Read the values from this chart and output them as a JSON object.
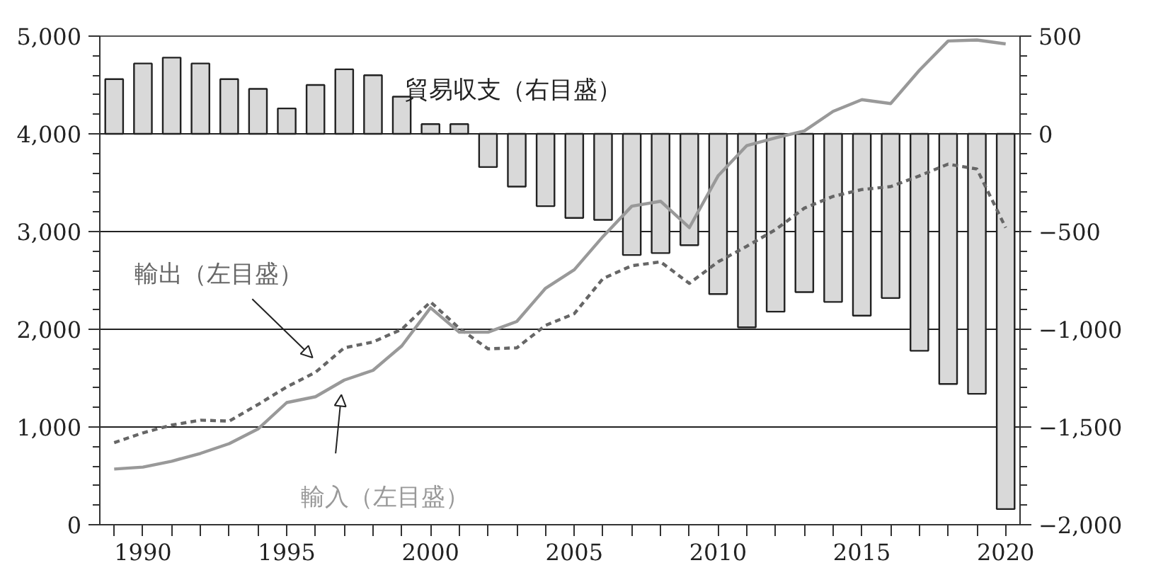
{
  "chart_data": {
    "type": "line",
    "x": [
      1989,
      1990,
      1991,
      1992,
      1993,
      1994,
      1995,
      1996,
      1997,
      1998,
      1999,
      2000,
      2001,
      2002,
      2003,
      2004,
      2005,
      2006,
      2007,
      2008,
      2009,
      2010,
      2011,
      2012,
      2013,
      2014,
      2015,
      2016,
      2017,
      2018,
      2019,
      2020
    ],
    "series": [
      {
        "name": "貿易収支（右目盛）",
        "type": "bar",
        "axis": "y2",
        "color": "#d9d9d9",
        "values": [
          280,
          360,
          390,
          360,
          280,
          230,
          130,
          250,
          330,
          300,
          190,
          50,
          50,
          -170,
          -270,
          -370,
          -430,
          -440,
          -620,
          -610,
          -570,
          -820,
          -990,
          -910,
          -810,
          -860,
          -930,
          -840,
          -1110,
          -1280,
          -1330,
          -1920
        ]
      },
      {
        "name": "輸出（左目盛）",
        "line_style": "dashed",
        "color": "#666666",
        "values": [
          840,
          940,
          1020,
          1070,
          1060,
          1230,
          1410,
          1560,
          1810,
          1870,
          2000,
          2280,
          2010,
          1800,
          1810,
          2040,
          2160,
          2520,
          2650,
          2690,
          2470,
          2690,
          2850,
          3020,
          3240,
          3360,
          3430,
          3460,
          3570,
          3690,
          3640,
          3040
        ]
      },
      {
        "name": "輸入（左目盛）",
        "line_style": "solid",
        "color": "#999999",
        "values": [
          570,
          590,
          650,
          730,
          830,
          980,
          1250,
          1310,
          1480,
          1580,
          1830,
          2220,
          1970,
          1970,
          2080,
          2420,
          2610,
          2950,
          3260,
          3310,
          3040,
          3570,
          3880,
          3960,
          4030,
          4230,
          4350,
          4310,
          4650,
          4950,
          4960,
          4920
        ]
      }
    ],
    "xlim": [
      1988.5,
      2020.5
    ],
    "xticks": [
      {
        "value": 1989,
        "label": null
      },
      1990,
      {
        "value": 1991,
        "label": null
      },
      {
        "value": 1992,
        "label": null
      },
      {
        "value": 1993,
        "label": null
      },
      {
        "value": 1994,
        "label": null
      },
      1995,
      {
        "value": 1996,
        "label": null
      },
      {
        "value": 1997,
        "label": null
      },
      {
        "value": 1998,
        "label": null
      },
      {
        "value": 1999,
        "label": null
      },
      2000,
      {
        "value": 2001,
        "label": null
      },
      {
        "value": 2002,
        "label": null
      },
      {
        "value": 2003,
        "label": null
      },
      {
        "value": 2004,
        "label": null
      },
      2005,
      {
        "value": 2006,
        "label": null
      },
      {
        "value": 2007,
        "label": null
      },
      {
        "value": 2008,
        "label": null
      },
      {
        "value": 2009,
        "label": null
      },
      2010,
      {
        "value": 2011,
        "label": null
      },
      {
        "value": 2012,
        "label": null
      },
      {
        "value": 2013,
        "label": null
      },
      {
        "value": 2014,
        "label": null
      },
      2015,
      {
        "value": 2016,
        "label": null
      },
      {
        "value": 2017,
        "label": null
      },
      {
        "value": 2018,
        "label": null
      },
      {
        "value": 2019,
        "label": null
      },
      2020
    ],
    "ylim": [
      0,
      5000
    ],
    "yticks": [
      0,
      {
        "value": 1000,
        "label": "1,000"
      },
      {
        "value": 2000,
        "label": "2,000"
      },
      {
        "value": 3000,
        "label": "3,000"
      },
      {
        "value": 4000,
        "label": "4,000"
      },
      {
        "value": 5000,
        "label": "5,000"
      }
    ],
    "y2lim": [
      -2000,
      500
    ],
    "y2ticks": [
      {
        "value": -2000,
        "label": "−2,000"
      },
      {
        "value": -1500,
        "label": "−1,500"
      },
      {
        "value": -1000,
        "label": "−1,000"
      },
      {
        "value": -500,
        "label": "−500"
      },
      0,
      500
    ],
    "grid": "y",
    "legend": false,
    "marker": "none"
  }
}
